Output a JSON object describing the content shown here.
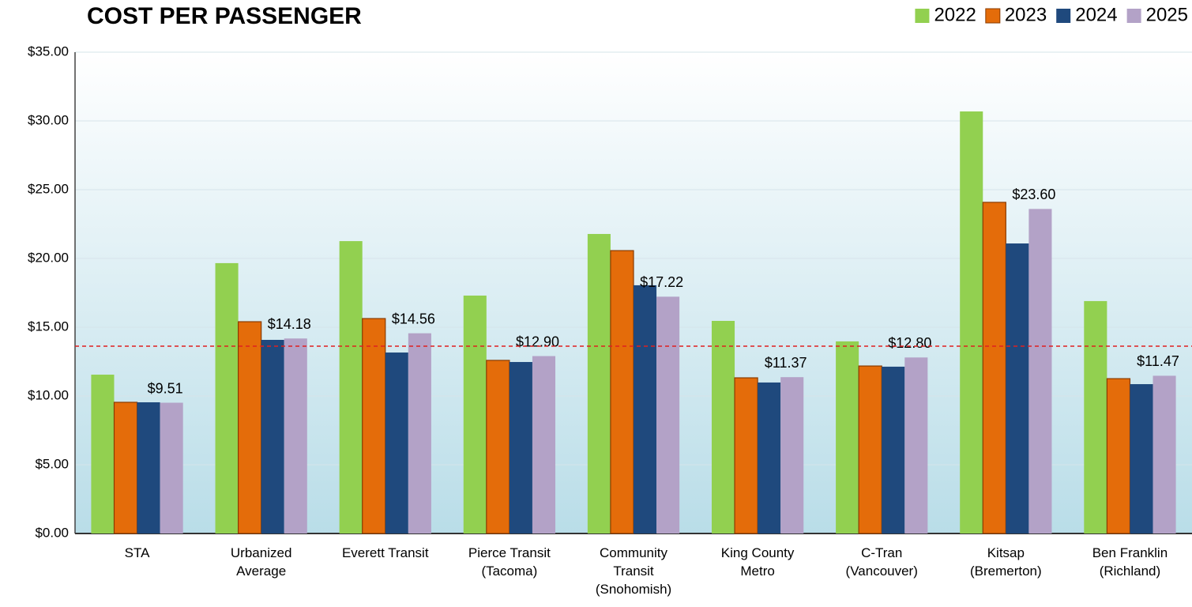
{
  "chart_data": {
    "type": "bar",
    "title": "COST PER PASSENGER",
    "categories": [
      "STA",
      "Urbanized\nAverage",
      "Everett Transit",
      "Pierce Transit\n(Tacoma)",
      "Community\nTransit\n(Snohomish)",
      "King County\nMetro",
      "C-Tran\n(Vancouver)",
      "Kitsap\n(Bremerton)",
      "Ben Franklin\n(Richland)"
    ],
    "series": [
      {
        "name": "2022",
        "color": "#92d050",
        "values": [
          11.55,
          19.66,
          21.26,
          17.3,
          21.78,
          15.46,
          13.97,
          30.69,
          16.9
        ]
      },
      {
        "name": "2023",
        "color": "#e46c0a",
        "values": [
          9.54,
          15.4,
          15.63,
          12.59,
          20.57,
          11.32,
          12.18,
          24.08,
          11.26
        ]
      },
      {
        "name": "2024",
        "color": "#1f497d",
        "values": [
          9.54,
          14.08,
          13.16,
          12.47,
          18.05,
          10.98,
          12.13,
          21.09,
          10.86
        ]
      },
      {
        "name": "2025",
        "color": "#b3a2c7",
        "values": [
          9.51,
          14.18,
          14.56,
          12.9,
          17.22,
          11.37,
          12.8,
          23.6,
          11.47
        ],
        "value_labels": [
          "$9.51",
          "$14.18",
          "$14.56",
          "$12.90",
          "$17.22",
          "$11.37",
          "$12.80",
          "$23.60",
          "$11.47"
        ]
      }
    ],
    "ylim": [
      0,
      35
    ],
    "yticks": [
      {
        "value": 0,
        "label": "$0.00"
      },
      {
        "value": 5,
        "label": "$5.00"
      },
      {
        "value": 10,
        "label": "$10.00"
      },
      {
        "value": 15,
        "label": "$15.00"
      },
      {
        "value": 20,
        "label": "$20.00"
      },
      {
        "value": 25,
        "label": "$25.00"
      },
      {
        "value": 30,
        "label": "$30.00"
      },
      {
        "value": 35,
        "label": "$35.00"
      }
    ],
    "grid": true,
    "legend": "top-right",
    "reference_line": {
      "value": 13.62,
      "color": "#e02020",
      "style": "dashed"
    }
  }
}
